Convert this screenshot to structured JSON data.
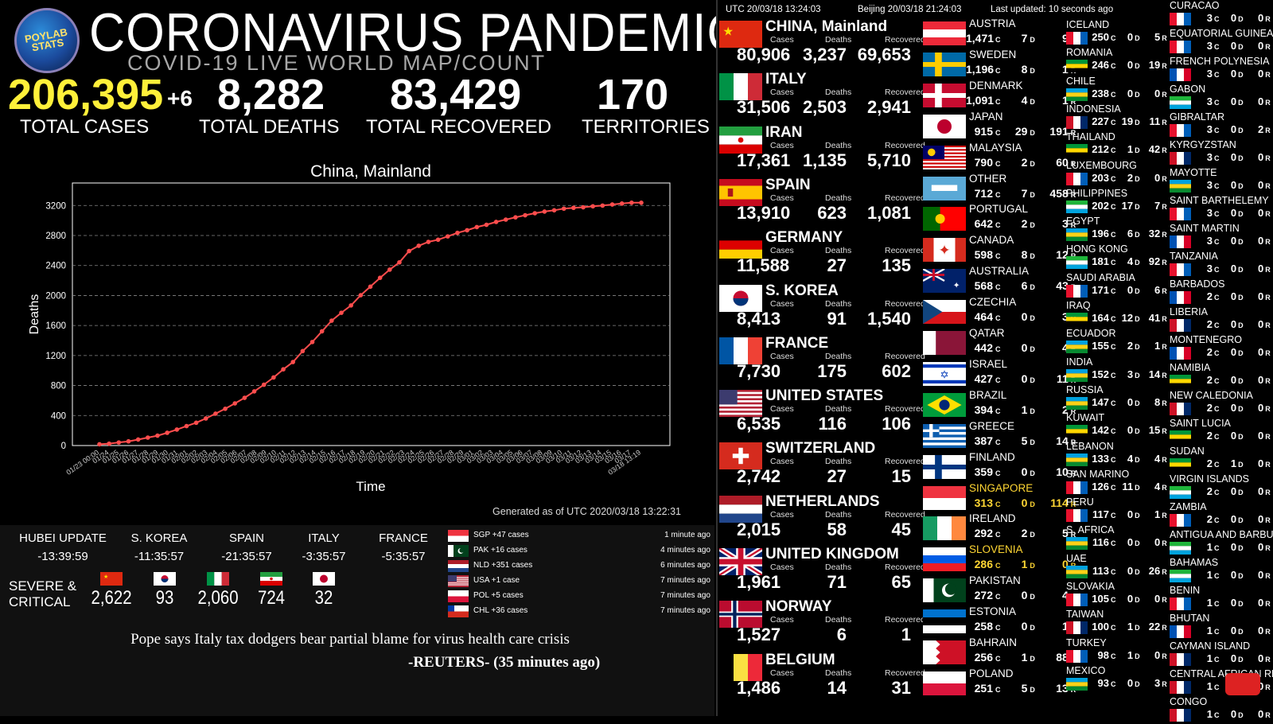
{
  "header": {
    "logo_text": "POYLAB STATS",
    "title": "CORONAVIRUS PANDEMIC",
    "subtitle": "COVID-19 LIVE WORLD MAP/COUNT"
  },
  "totals": {
    "cases": "206,395",
    "cases_delta": "+6",
    "cases_label": "TOTAL CASES",
    "deaths": "8,282",
    "deaths_label": "TOTAL DEATHS",
    "recovered": "83,429",
    "recovered_label": "TOTAL RECOVERED",
    "territories": "170",
    "territories_label": "TERRITORIES"
  },
  "chart_data": {
    "type": "line",
    "title": "China, Mainland",
    "xlabel": "Time",
    "ylabel": "Deaths",
    "ylim": [
      0,
      3500
    ],
    "yticks": [
      0,
      400,
      800,
      1200,
      1600,
      2000,
      2400,
      2800,
      3200
    ],
    "grid": true,
    "x_tick_labels": [
      "01/23 00:00",
      "01/24",
      "01/25",
      "01/26",
      "01/27",
      "01/28",
      "01/29",
      "01/30",
      "01/31",
      "02/01",
      "02/02",
      "02/03",
      "02/04",
      "02/05",
      "02/06",
      "02/07",
      "02/08",
      "02/09",
      "02/10",
      "02/11",
      "02/12",
      "02/13",
      "02/14",
      "02/15",
      "02/16",
      "02/17",
      "02/18",
      "02/19",
      "02/20",
      "02/21",
      "02/22",
      "02/23",
      "02/24",
      "02/25",
      "02/26",
      "02/27",
      "02/28",
      "02/29",
      "03/01",
      "03/02",
      "03/03",
      "03/04",
      "03/05",
      "03/06",
      "03/07",
      "03/08",
      "03/09",
      "03/10",
      "03/11",
      "03/12",
      "03/13",
      "03/14",
      "03/15",
      "03/16",
      "03/17",
      "03/18 13:19"
    ],
    "series": [
      {
        "color": "#ff4d4d",
        "values": [
          17,
          25,
          41,
          56,
          80,
          106,
          132,
          170,
          213,
          259,
          304,
          361,
          425,
          490,
          562,
          636,
          722,
          811,
          908,
          1016,
          1113,
          1259,
          1380,
          1523,
          1665,
          1770,
          1868,
          2004,
          2118,
          2236,
          2345,
          2442,
          2592,
          2663,
          2715,
          2744,
          2788,
          2835,
          2870,
          2912,
          2943,
          2981,
          3012,
          3042,
          3070,
          3097,
          3119,
          3136,
          3158,
          3169,
          3176,
          3189,
          3199,
          3213,
          3226,
          3237,
          3237
        ]
      }
    ],
    "footer": "Generated as of UTC 2020/03/18 13:22:31"
  },
  "updates": [
    {
      "label": "HUBEI UPDATE",
      "time": "-13:39:59"
    },
    {
      "label": "S. KOREA",
      "time": "-11:35:57"
    },
    {
      "label": "SPAIN",
      "time": "-21:35:57"
    },
    {
      "label": "ITALY",
      "time": "-3:35:57"
    },
    {
      "label": "FRANCE",
      "time": "-5:35:57"
    }
  ],
  "severe": {
    "label_line1": "SEVERE &",
    "label_line2": "CRITICAL",
    "values": [
      "2,622",
      "93",
      "2,060",
      "724",
      "32"
    ]
  },
  "feed": [
    {
      "text": "SGP +47 cases",
      "ago": "1 minute ago"
    },
    {
      "text": "PAK +16 cases",
      "ago": "4 minutes ago"
    },
    {
      "text": "NLD +351 cases",
      "ago": "6 minutes ago"
    },
    {
      "text": "USA +1 case",
      "ago": "7 minutes ago"
    },
    {
      "text": "POL +5 cases",
      "ago": "7 minutes ago"
    },
    {
      "text": "CHL +36 cases",
      "ago": "7 minutes ago"
    }
  ],
  "news": {
    "headline": "Pope says Italy tax dodgers bear partial blame for virus health care crisis",
    "source": "-REUTERS- (35 minutes ago)"
  },
  "clock": {
    "utc": "UTC 20/03/18 13:24:03",
    "beijing": "Beijing 20/03/18 21:24:03",
    "updated": "Last updated: 10 seconds ago"
  },
  "labels": {
    "cases": "Cases",
    "deaths": "Deaths",
    "recovered": "Recovered",
    "c": "C",
    "d": "D",
    "r": "R"
  },
  "col1": [
    {
      "name": "CHINA, Mainland",
      "cases": "80,906",
      "deaths": "3,237",
      "recovered": "69,653"
    },
    {
      "name": "ITALY",
      "cases": "31,506",
      "deaths": "2,503",
      "recovered": "2,941"
    },
    {
      "name": "IRAN",
      "cases": "17,361",
      "deaths": "1,135",
      "recovered": "5,710"
    },
    {
      "name": "SPAIN",
      "cases": "13,910",
      "deaths": "623",
      "recovered": "1,081"
    },
    {
      "name": "GERMANY",
      "cases": "11,588",
      "deaths": "27",
      "recovered": "135"
    },
    {
      "name": "S. KOREA",
      "cases": "8,413",
      "deaths": "91",
      "recovered": "1,540"
    },
    {
      "name": "FRANCE",
      "cases": "7,730",
      "deaths": "175",
      "recovered": "602"
    },
    {
      "name": "UNITED STATES",
      "cases": "6,535",
      "deaths": "116",
      "recovered": "106"
    },
    {
      "name": "SWITZERLAND",
      "cases": "2,742",
      "deaths": "27",
      "recovered": "15"
    },
    {
      "name": "NETHERLANDS",
      "cases": "2,015",
      "deaths": "58",
      "recovered": "45"
    },
    {
      "name": "UNITED KINGDOM",
      "cases": "1,961",
      "deaths": "71",
      "recovered": "65"
    },
    {
      "name": "NORWAY",
      "cases": "1,527",
      "deaths": "6",
      "recovered": "1"
    },
    {
      "name": "BELGIUM",
      "cases": "1,486",
      "deaths": "14",
      "recovered": "31"
    }
  ],
  "col2": [
    {
      "name": "AUSTRIA",
      "c": "1,471",
      "d": "7",
      "r": "9"
    },
    {
      "name": "SWEDEN",
      "c": "1,196",
      "d": "8",
      "r": "1"
    },
    {
      "name": "DENMARK",
      "c": "1,091",
      "d": "4",
      "r": "1"
    },
    {
      "name": "JAPAN",
      "c": "915",
      "d": "29",
      "r": "191"
    },
    {
      "name": "MALAYSIA",
      "c": "790",
      "d": "2",
      "r": "60"
    },
    {
      "name": "OTHER",
      "c": "712",
      "d": "7",
      "r": "458"
    },
    {
      "name": "PORTUGAL",
      "c": "642",
      "d": "2",
      "r": "3"
    },
    {
      "name": "CANADA",
      "c": "598",
      "d": "8",
      "r": "12"
    },
    {
      "name": "AUSTRALIA",
      "c": "568",
      "d": "6",
      "r": "43"
    },
    {
      "name": "CZECHIA",
      "c": "464",
      "d": "0",
      "r": "3"
    },
    {
      "name": "QATAR",
      "c": "442",
      "d": "0",
      "r": "4"
    },
    {
      "name": "ISRAEL",
      "c": "427",
      "d": "0",
      "r": "11"
    },
    {
      "name": "BRAZIL",
      "c": "394",
      "d": "1",
      "r": "2"
    },
    {
      "name": "GREECE",
      "c": "387",
      "d": "5",
      "r": "14"
    },
    {
      "name": "FINLAND",
      "c": "359",
      "d": "0",
      "r": "10"
    },
    {
      "name": "SINGAPORE",
      "c": "313",
      "d": "0",
      "r": "114",
      "highlight": "#ffd633"
    },
    {
      "name": "IRELAND",
      "c": "292",
      "d": "2",
      "r": "5"
    },
    {
      "name": "SLOVENIA",
      "c": "286",
      "d": "1",
      "r": "0",
      "highlight": "#ffd633"
    },
    {
      "name": "PAKISTAN",
      "c": "272",
      "d": "0",
      "r": "4"
    },
    {
      "name": "ESTONIA",
      "c": "258",
      "d": "0",
      "r": "1"
    },
    {
      "name": "BAHRAIN",
      "c": "256",
      "d": "1",
      "r": "88"
    },
    {
      "name": "POLAND",
      "c": "251",
      "d": "5",
      "r": "13"
    }
  ],
  "col3": [
    {
      "name": "ICELAND",
      "c": "250",
      "d": "0",
      "r": "5"
    },
    {
      "name": "ROMANIA",
      "c": "246",
      "d": "0",
      "r": "19"
    },
    {
      "name": "CHILE",
      "c": "238",
      "d": "0",
      "r": "0"
    },
    {
      "name": "INDONESIA",
      "c": "227",
      "d": "19",
      "r": "11"
    },
    {
      "name": "THAILAND",
      "c": "212",
      "d": "1",
      "r": "42"
    },
    {
      "name": "LUXEMBOURG",
      "c": "203",
      "d": "2",
      "r": "0"
    },
    {
      "name": "PHILIPPINES",
      "c": "202",
      "d": "17",
      "r": "7"
    },
    {
      "name": "EGYPT",
      "c": "196",
      "d": "6",
      "r": "32"
    },
    {
      "name": "HONG KONG",
      "c": "181",
      "d": "4",
      "r": "92"
    },
    {
      "name": "SAUDI ARABIA",
      "c": "171",
      "d": "0",
      "r": "6"
    },
    {
      "name": "IRAQ",
      "c": "164",
      "d": "12",
      "r": "41"
    },
    {
      "name": "ECUADOR",
      "c": "155",
      "d": "2",
      "r": "1"
    },
    {
      "name": "INDIA",
      "c": "152",
      "d": "3",
      "r": "14"
    },
    {
      "name": "RUSSIA",
      "c": "147",
      "d": "0",
      "r": "8"
    },
    {
      "name": "KUWAIT",
      "c": "142",
      "d": "0",
      "r": "15"
    },
    {
      "name": "LEBANON",
      "c": "133",
      "d": "4",
      "r": "4"
    },
    {
      "name": "SAN MARINO",
      "c": "126",
      "d": "11",
      "r": "4"
    },
    {
      "name": "PERU",
      "c": "117",
      "d": "0",
      "r": "1"
    },
    {
      "name": "S. AFRICA",
      "c": "116",
      "d": "0",
      "r": "0"
    },
    {
      "name": "UAE",
      "c": "113",
      "d": "0",
      "r": "26"
    },
    {
      "name": "SLOVAKIA",
      "c": "105",
      "d": "0",
      "r": "0"
    },
    {
      "name": "TAIWAN",
      "c": "100",
      "d": "1",
      "r": "22"
    },
    {
      "name": "TURKEY",
      "c": "98",
      "d": "1",
      "r": "0"
    },
    {
      "name": "MEXICO",
      "c": "93",
      "d": "0",
      "r": "3"
    }
  ],
  "col4": [
    {
      "name": "CURACAO",
      "c": "3",
      "d": "0",
      "r": "0"
    },
    {
      "name": "EQUATORIAL GUINEA",
      "c": "3",
      "d": "0",
      "r": "0"
    },
    {
      "name": "FRENCH POLYNESIA",
      "c": "3",
      "d": "0",
      "r": "0"
    },
    {
      "name": "GABON",
      "c": "3",
      "d": "0",
      "r": "0"
    },
    {
      "name": "GIBRALTAR",
      "c": "3",
      "d": "0",
      "r": "2"
    },
    {
      "name": "KYRGYZSTAN",
      "c": "3",
      "d": "0",
      "r": "0"
    },
    {
      "name": "MAYOTTE",
      "c": "3",
      "d": "0",
      "r": "0"
    },
    {
      "name": "SAINT BARTHELEMY",
      "c": "3",
      "d": "0",
      "r": "0"
    },
    {
      "name": "SAINT MARTIN",
      "c": "3",
      "d": "0",
      "r": "0"
    },
    {
      "name": "TANZANIA",
      "c": "3",
      "d": "0",
      "r": "0"
    },
    {
      "name": "BARBADOS",
      "c": "2",
      "d": "0",
      "r": "0"
    },
    {
      "name": "LIBERIA",
      "c": "2",
      "d": "0",
      "r": "0"
    },
    {
      "name": "MONTENEGRO",
      "c": "2",
      "d": "0",
      "r": "0"
    },
    {
      "name": "NAMIBIA",
      "c": "2",
      "d": "0",
      "r": "0"
    },
    {
      "name": "NEW CALEDONIA",
      "c": "2",
      "d": "0",
      "r": "0"
    },
    {
      "name": "SAINT LUCIA",
      "c": "2",
      "d": "0",
      "r": "0"
    },
    {
      "name": "SUDAN",
      "c": "2",
      "d": "1",
      "r": "0"
    },
    {
      "name": "VIRGIN ISLANDS",
      "c": "2",
      "d": "0",
      "r": "0"
    },
    {
      "name": "ZAMBIA",
      "c": "2",
      "d": "0",
      "r": "0"
    },
    {
      "name": "ANTIGUA AND BARBUDA",
      "c": "1",
      "d": "0",
      "r": "0"
    },
    {
      "name": "BAHAMAS",
      "c": "1",
      "d": "0",
      "r": "0"
    },
    {
      "name": "BENIN",
      "c": "1",
      "d": "0",
      "r": "0"
    },
    {
      "name": "BHUTAN",
      "c": "1",
      "d": "0",
      "r": "0"
    },
    {
      "name": "CAYMAN ISLAND",
      "c": "1",
      "d": "0",
      "r": "0"
    },
    {
      "name": "CENTRAL AFRICAN REP.",
      "c": "1",
      "d": "0",
      "r": "0"
    },
    {
      "name": "CONGO",
      "c": "1",
      "d": "0",
      "r": "0"
    }
  ]
}
